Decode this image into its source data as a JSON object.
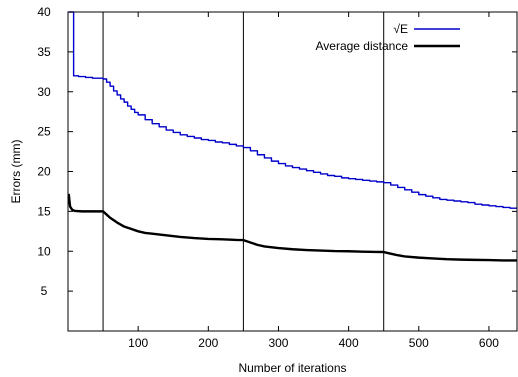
{
  "chart_data": {
    "type": "line",
    "xlabel": "Number of iterations",
    "ylabel": "Errors (mm)",
    "xlim": [
      0,
      640
    ],
    "ylim": [
      0,
      40
    ],
    "xticks": [
      100,
      200,
      300,
      400,
      500,
      600
    ],
    "yticks": [
      5,
      10,
      15,
      20,
      25,
      30,
      35,
      40
    ],
    "xtick_labels": [
      "100",
      "200",
      "300",
      "400",
      "500",
      "600"
    ],
    "ytick_labels": [
      "5",
      "10",
      "15",
      "20",
      "25",
      "30",
      "35",
      "40"
    ],
    "vertical_lines": [
      50,
      250,
      450
    ],
    "grid": false,
    "legend_position": "top-right",
    "series": [
      {
        "name": "√E",
        "color": "#0000cc",
        "step": true,
        "points": [
          [
            1,
            40
          ],
          [
            4,
            40
          ],
          [
            8,
            32
          ],
          [
            15,
            31.9
          ],
          [
            25,
            31.8
          ],
          [
            35,
            31.7
          ],
          [
            45,
            31.7
          ],
          [
            50,
            31.6
          ],
          [
            55,
            31.2
          ],
          [
            60,
            30.7
          ],
          [
            65,
            30.1
          ],
          [
            70,
            29.6
          ],
          [
            75,
            29.1
          ],
          [
            80,
            28.7
          ],
          [
            85,
            28.2
          ],
          [
            90,
            27.8
          ],
          [
            95,
            27.4
          ],
          [
            100,
            27.1
          ],
          [
            110,
            26.5
          ],
          [
            120,
            26.0
          ],
          [
            130,
            25.6
          ],
          [
            140,
            25.2
          ],
          [
            150,
            24.9
          ],
          [
            160,
            24.6
          ],
          [
            170,
            24.4
          ],
          [
            180,
            24.2
          ],
          [
            190,
            24.0
          ],
          [
            200,
            23.9
          ],
          [
            210,
            23.7
          ],
          [
            220,
            23.6
          ],
          [
            230,
            23.4
          ],
          [
            240,
            23.2
          ],
          [
            250,
            23.0
          ],
          [
            260,
            22.6
          ],
          [
            270,
            22.1
          ],
          [
            280,
            21.7
          ],
          [
            290,
            21.3
          ],
          [
            300,
            21.0
          ],
          [
            310,
            20.7
          ],
          [
            320,
            20.5
          ],
          [
            330,
            20.3
          ],
          [
            340,
            20.1
          ],
          [
            350,
            19.9
          ],
          [
            360,
            19.7
          ],
          [
            370,
            19.5
          ],
          [
            380,
            19.4
          ],
          [
            390,
            19.2
          ],
          [
            400,
            19.1
          ],
          [
            410,
            19.0
          ],
          [
            420,
            18.9
          ],
          [
            430,
            18.8
          ],
          [
            440,
            18.7
          ],
          [
            450,
            18.6
          ],
          [
            460,
            18.3
          ],
          [
            470,
            18.0
          ],
          [
            480,
            17.7
          ],
          [
            490,
            17.4
          ],
          [
            500,
            17.1
          ],
          [
            510,
            16.9
          ],
          [
            520,
            16.7
          ],
          [
            530,
            16.5
          ],
          [
            540,
            16.4
          ],
          [
            550,
            16.3
          ],
          [
            560,
            16.2
          ],
          [
            570,
            16.1
          ],
          [
            580,
            15.9
          ],
          [
            590,
            15.8
          ],
          [
            600,
            15.7
          ],
          [
            610,
            15.6
          ],
          [
            620,
            15.5
          ],
          [
            630,
            15.4
          ],
          [
            640,
            15.4
          ]
        ]
      },
      {
        "name": "Average distance",
        "color": "#000000",
        "step": false,
        "points": [
          [
            1,
            17.2
          ],
          [
            3,
            15.6
          ],
          [
            6,
            15.2
          ],
          [
            10,
            15.05
          ],
          [
            20,
            15.0
          ],
          [
            30,
            15.0
          ],
          [
            40,
            15.0
          ],
          [
            50,
            15.0
          ],
          [
            55,
            14.6
          ],
          [
            60,
            14.2
          ],
          [
            70,
            13.6
          ],
          [
            80,
            13.1
          ],
          [
            90,
            12.8
          ],
          [
            100,
            12.5
          ],
          [
            110,
            12.3
          ],
          [
            120,
            12.2
          ],
          [
            140,
            12.0
          ],
          [
            160,
            11.8
          ],
          [
            180,
            11.65
          ],
          [
            200,
            11.55
          ],
          [
            220,
            11.5
          ],
          [
            240,
            11.42
          ],
          [
            250,
            11.4
          ],
          [
            260,
            11.1
          ],
          [
            270,
            10.8
          ],
          [
            280,
            10.6
          ],
          [
            300,
            10.4
          ],
          [
            320,
            10.25
          ],
          [
            340,
            10.15
          ],
          [
            360,
            10.08
          ],
          [
            380,
            10.02
          ],
          [
            400,
            10.0
          ],
          [
            420,
            9.95
          ],
          [
            440,
            9.92
          ],
          [
            450,
            9.9
          ],
          [
            460,
            9.7
          ],
          [
            470,
            9.5
          ],
          [
            480,
            9.35
          ],
          [
            500,
            9.2
          ],
          [
            520,
            9.1
          ],
          [
            540,
            9.0
          ],
          [
            560,
            8.95
          ],
          [
            580,
            8.92
          ],
          [
            600,
            8.9
          ],
          [
            620,
            8.85
          ],
          [
            640,
            8.85
          ]
        ]
      }
    ]
  }
}
